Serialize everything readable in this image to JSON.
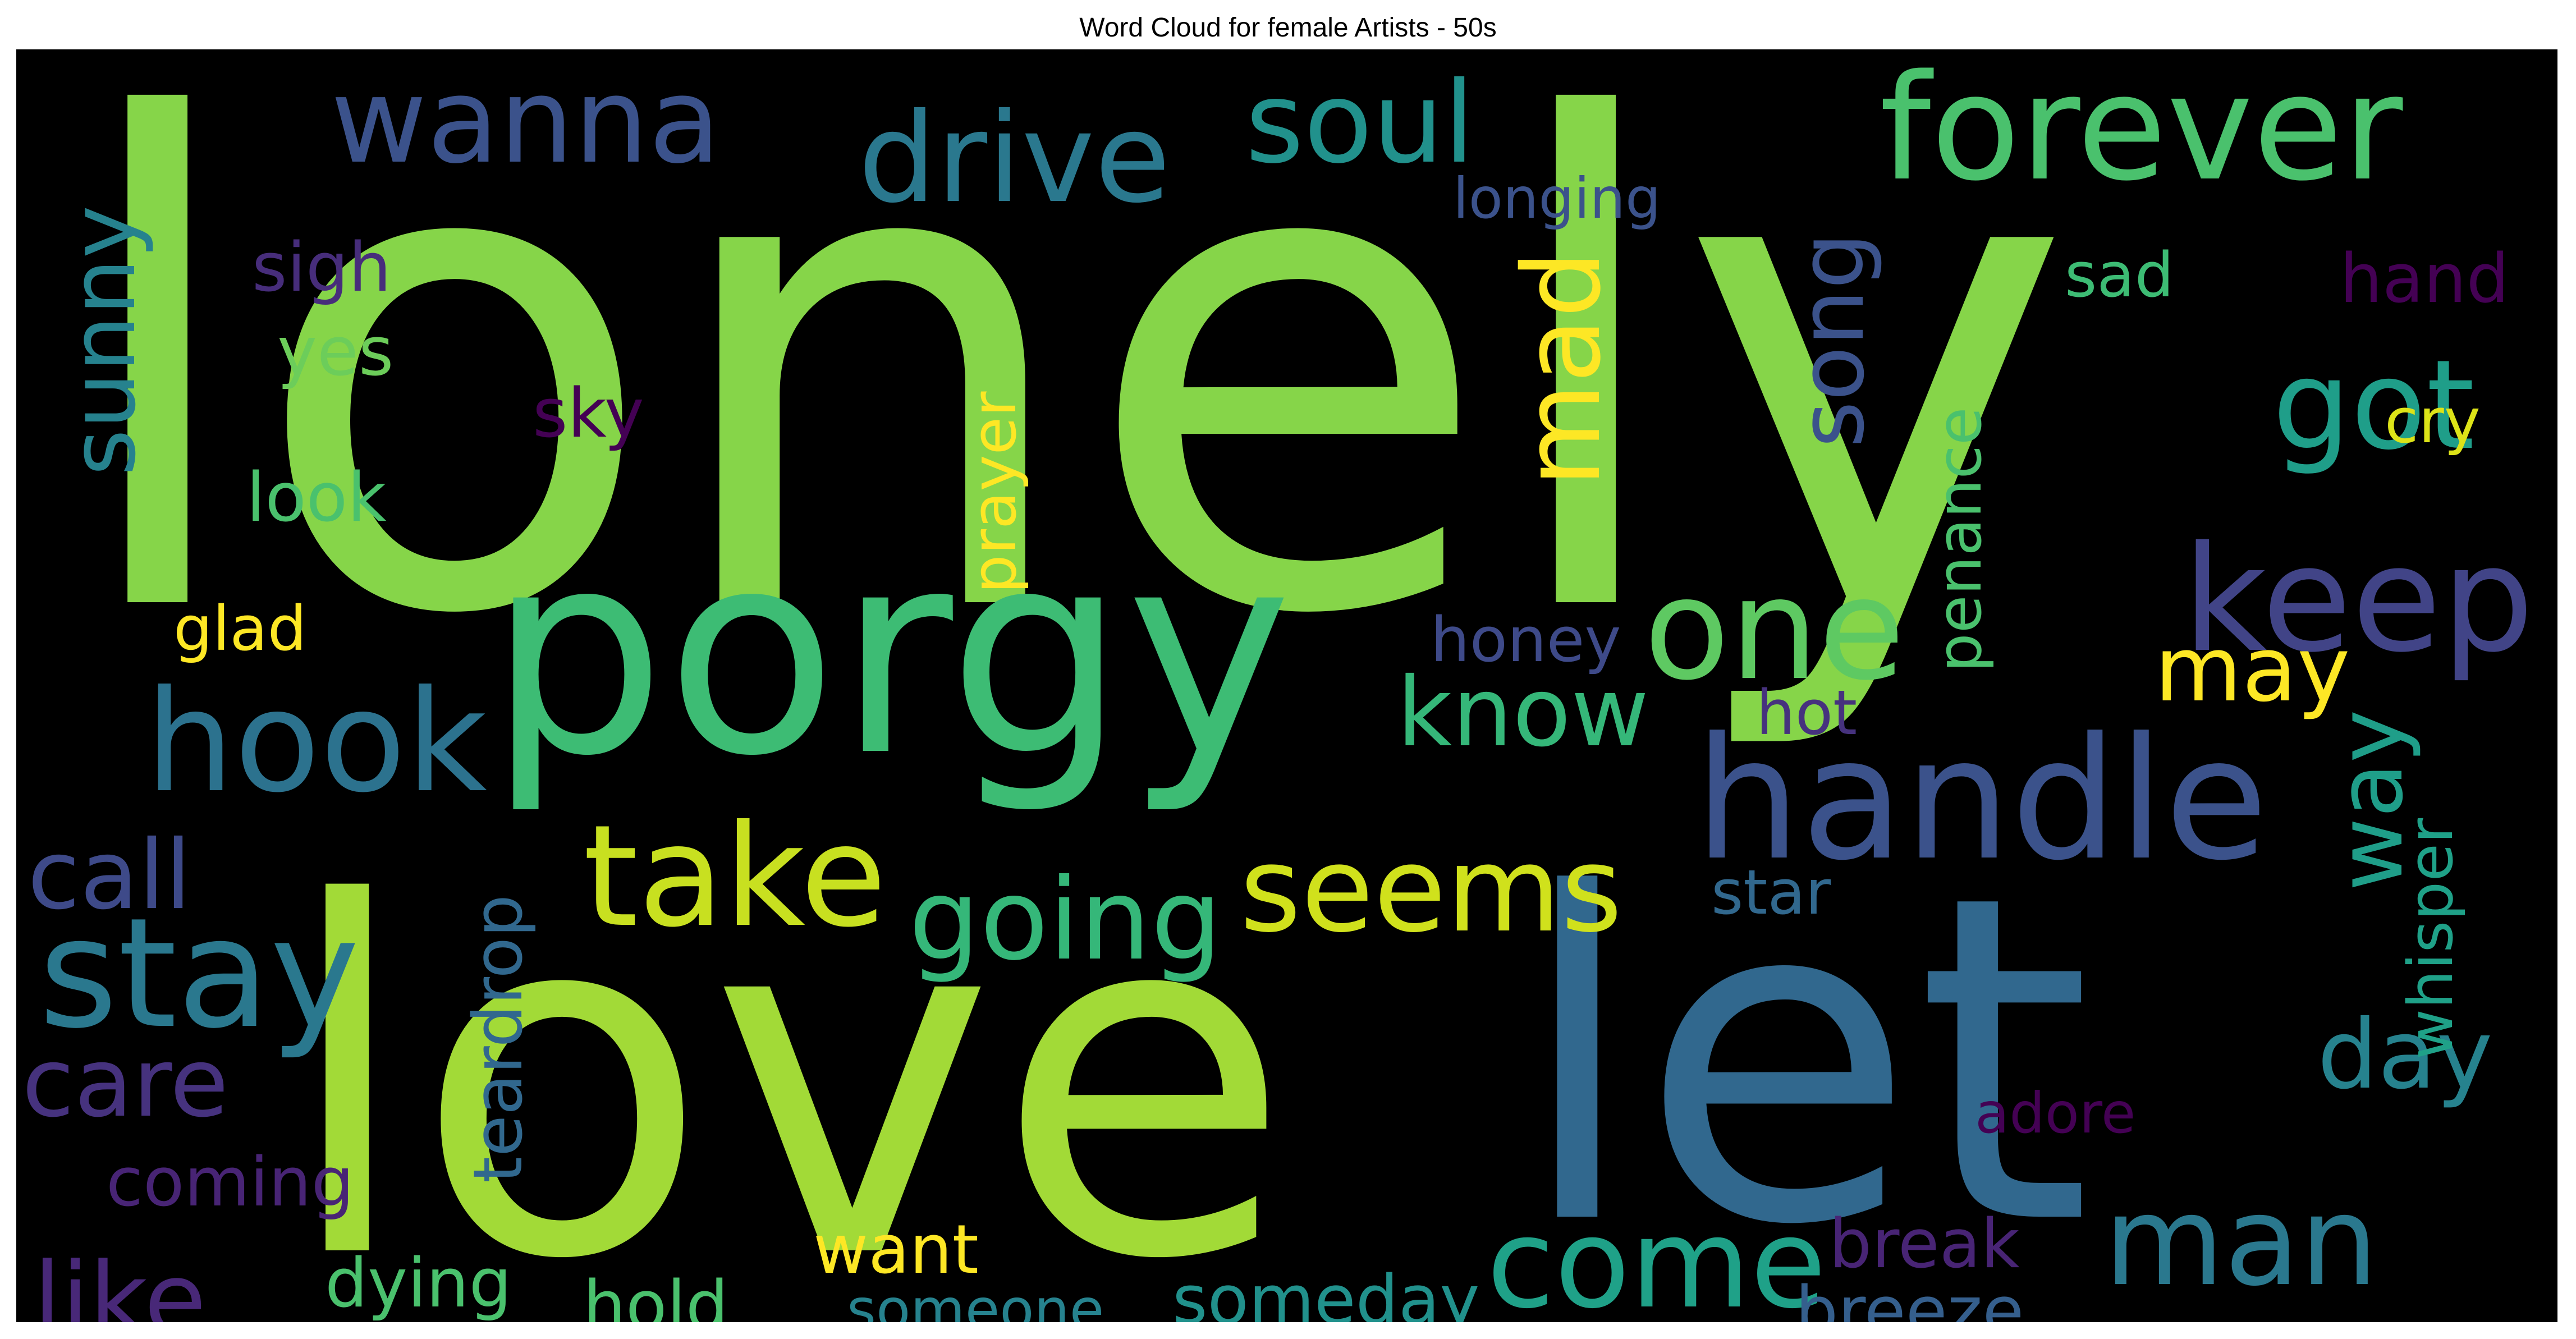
{
  "title": "Word Cloud for female Artists - 50s",
  "palette": {
    "background": "#000000",
    "viridis": [
      "#440154",
      "#472d7b",
      "#3b528b",
      "#2c728e",
      "#21918c",
      "#28ae80",
      "#5ec962",
      "#addc30",
      "#fde725"
    ]
  },
  "words": [
    {
      "text": "lonely",
      "color": "#86d549"
    },
    {
      "text": "love",
      "color": "#a2da37"
    },
    {
      "text": "let",
      "color": "#31688e"
    },
    {
      "text": "porgy",
      "color": "#3dbc74"
    },
    {
      "text": "handle",
      "color": "#3b528b"
    },
    {
      "text": "take",
      "color": "#c8e020"
    },
    {
      "text": "seems",
      "color": "#d0e11c"
    },
    {
      "text": "going",
      "color": "#35b779"
    },
    {
      "text": "hook",
      "color": "#2c728e"
    },
    {
      "text": "stay",
      "color": "#2a788e"
    },
    {
      "text": "forever",
      "color": "#4ac16d"
    },
    {
      "text": "drive",
      "color": "#2a788e"
    },
    {
      "text": "wanna",
      "color": "#3b528b"
    },
    {
      "text": "soul",
      "color": "#21918c"
    },
    {
      "text": "one",
      "color": "#5ec962"
    },
    {
      "text": "keep",
      "color": "#414487"
    },
    {
      "text": "got",
      "color": "#1f9e89"
    },
    {
      "text": "come",
      "color": "#1fa188"
    },
    {
      "text": "man",
      "color": "#2a788e"
    },
    {
      "text": "mad",
      "color": "#fde725"
    },
    {
      "text": "song",
      "color": "#3b528b"
    },
    {
      "text": "know",
      "color": "#35b779"
    },
    {
      "text": "call",
      "color": "#3e4a89"
    },
    {
      "text": "care",
      "color": "#46327e"
    },
    {
      "text": "like",
      "color": "#482878"
    },
    {
      "text": "way",
      "color": "#1f9e89"
    },
    {
      "text": "day",
      "color": "#26828e"
    },
    {
      "text": "may",
      "color": "#fde725"
    },
    {
      "text": "sunny",
      "color": "#26828e"
    },
    {
      "text": "whisper",
      "color": "#1fa188"
    },
    {
      "text": "teardrop",
      "color": "#31688e"
    },
    {
      "text": "someday",
      "color": "#21918c"
    },
    {
      "text": "coming",
      "color": "#482475"
    },
    {
      "text": "breeze",
      "color": "#355f8d"
    },
    {
      "text": "honey",
      "color": "#3e4a89"
    },
    {
      "text": "prayer",
      "color": "#fde725"
    },
    {
      "text": "penance",
      "color": "#4ac16d"
    },
    {
      "text": "dying",
      "color": "#4ac16d"
    },
    {
      "text": "hold",
      "color": "#4ac16d"
    },
    {
      "text": "want",
      "color": "#fde725"
    },
    {
      "text": "break",
      "color": "#482475"
    },
    {
      "text": "look",
      "color": "#4ac16d"
    },
    {
      "text": "glad",
      "color": "#fde725"
    },
    {
      "text": "yes",
      "color": "#6ccd5a"
    },
    {
      "text": "sigh",
      "color": "#472d7b"
    },
    {
      "text": "longing",
      "color": "#3b528b"
    },
    {
      "text": "sad",
      "color": "#3dbc74"
    },
    {
      "text": "hand",
      "color": "#440154"
    },
    {
      "text": "cry",
      "color": "#dde318"
    },
    {
      "text": "star",
      "color": "#31688e"
    },
    {
      "text": "hot",
      "color": "#46327e"
    },
    {
      "text": "adore",
      "color": "#440154"
    },
    {
      "text": "sky",
      "color": "#440154"
    },
    {
      "text": "someone",
      "color": "#26828e"
    }
  ]
}
